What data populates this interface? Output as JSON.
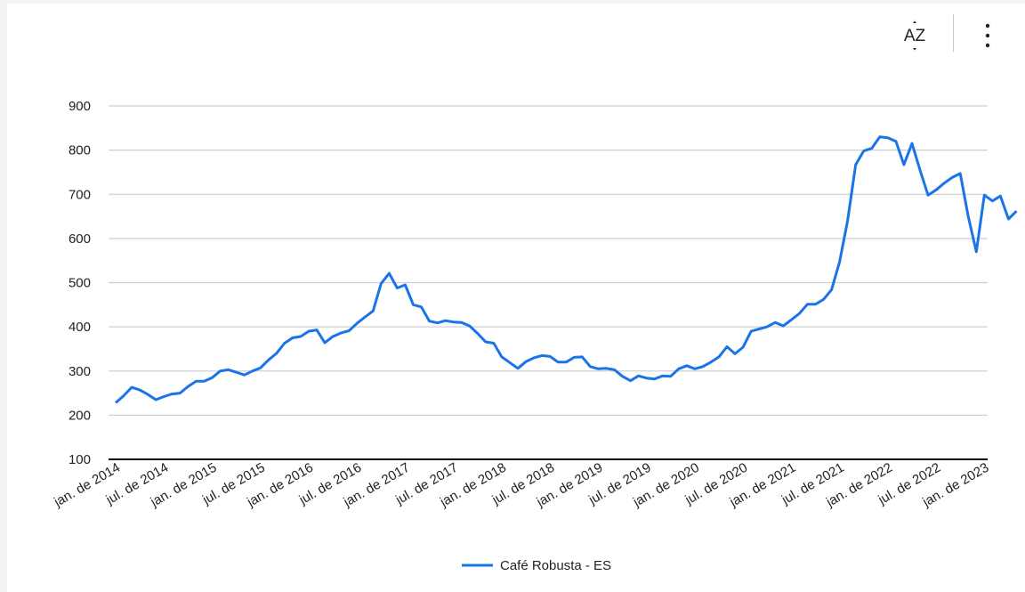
{
  "toolbar": {
    "sort_icon": "sort-az-icon",
    "sort_label": "AZ",
    "more_icon": "more-vert-icon"
  },
  "colors": {
    "series": "#1a73e8",
    "grid": "#d0d0d0",
    "axis": "#000000",
    "text": "#222222"
  },
  "chart_data": {
    "type": "line",
    "title": "",
    "xlabel": "",
    "ylabel": "",
    "ylim": [
      100,
      900
    ],
    "yticks": [
      100,
      200,
      300,
      400,
      500,
      600,
      700,
      800,
      900
    ],
    "grid": true,
    "legend_position": "bottom",
    "x_tick_labels": [
      "jan. de 2014",
      "jul. de 2014",
      "jan. de 2015",
      "jul. de 2015",
      "jan. de 2016",
      "jul. de 2016",
      "jan. de 2017",
      "jul. de 2017",
      "jan. de 2018",
      "jul. de 2018",
      "jan. de 2019",
      "jul. de 2019",
      "jan. de 2020",
      "jul. de 2020",
      "jan. de 2021",
      "jul. de 2021",
      "jan. de 2022",
      "jul. de 2022",
      "jan. de 2023"
    ],
    "x_start": "2014-01",
    "x_end": "2023-05",
    "series": [
      {
        "name": "Café Robusta - ES",
        "values": [
          228,
          244,
          263,
          257,
          247,
          235,
          242,
          248,
          250,
          265,
          277,
          277,
          285,
          300,
          303,
          297,
          291,
          300,
          307,
          325,
          340,
          363,
          375,
          378,
          390,
          393,
          364,
          378,
          386,
          391,
          408,
          422,
          436,
          498,
          521,
          488,
          495,
          450,
          445,
          413,
          409,
          414,
          411,
          410,
          402,
          385,
          366,
          363,
          332,
          319,
          306,
          321,
          330,
          335,
          333,
          320,
          320,
          331,
          332,
          310,
          305,
          306,
          303,
          288,
          278,
          289,
          284,
          282,
          289,
          288,
          305,
          312,
          305,
          310,
          320,
          332,
          355,
          339,
          354,
          390,
          395,
          400,
          410,
          402,
          416,
          430,
          451,
          451,
          462,
          484,
          547,
          640,
          767,
          798,
          804,
          830,
          828,
          820,
          767,
          815,
          755,
          698,
          710,
          725,
          738,
          747,
          650,
          570,
          698,
          685,
          696,
          644,
          662
        ]
      }
    ]
  }
}
